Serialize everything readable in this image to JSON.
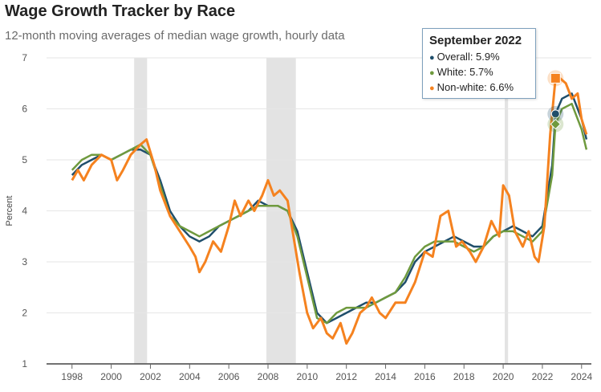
{
  "chart_data": {
    "type": "line",
    "title": "Wage Growth Tracker by Race",
    "subtitle": "12-month moving averages of median wage growth, hourly data",
    "ylabel": "Percent",
    "xlabel": "",
    "xlim": [
      1996.7,
      2024.5
    ],
    "ylim": [
      1,
      7
    ],
    "yticks": [
      1,
      2,
      3,
      4,
      5,
      6,
      7
    ],
    "xticks": [
      1998,
      2000,
      2002,
      2004,
      2006,
      2008,
      2010,
      2012,
      2014,
      2016,
      2018,
      2020,
      2022,
      2024
    ],
    "recessions": [
      [
        2001.17,
        2001.83
      ],
      [
        2007.92,
        2009.42
      ],
      [
        2020.08,
        2020.25
      ]
    ],
    "series": [
      {
        "name": "Overall",
        "color": "#1f4e6b",
        "x": [
          1998.0,
          1998.5,
          1999.0,
          1999.5,
          2000.0,
          2000.5,
          2001.0,
          2001.5,
          2002.0,
          2002.5,
          2003.0,
          2003.5,
          2004.0,
          2004.5,
          2005.0,
          2005.5,
          2006.0,
          2006.5,
          2007.0,
          2007.5,
          2008.0,
          2008.5,
          2009.0,
          2009.5,
          2010.0,
          2010.5,
          2011.0,
          2011.5,
          2012.0,
          2012.5,
          2013.0,
          2013.5,
          2014.0,
          2014.5,
          2015.0,
          2015.5,
          2016.0,
          2016.5,
          2017.0,
          2017.5,
          2018.0,
          2018.5,
          2019.0,
          2019.5,
          2020.0,
          2020.5,
          2021.0,
          2021.5,
          2022.0,
          2022.5,
          2022.67,
          2023.0,
          2023.5,
          2024.0,
          2024.25
        ],
        "values": [
          4.7,
          4.9,
          5.0,
          5.1,
          5.0,
          5.1,
          5.2,
          5.2,
          5.1,
          4.6,
          4.0,
          3.7,
          3.5,
          3.4,
          3.5,
          3.7,
          3.8,
          3.9,
          4.0,
          4.2,
          4.1,
          4.1,
          4.0,
          3.6,
          2.8,
          2.0,
          1.8,
          1.9,
          2.0,
          2.1,
          2.2,
          2.2,
          2.3,
          2.4,
          2.6,
          3.0,
          3.2,
          3.3,
          3.4,
          3.5,
          3.4,
          3.3,
          3.3,
          3.5,
          3.6,
          3.7,
          3.6,
          3.5,
          3.7,
          4.9,
          5.9,
          6.2,
          6.3,
          5.8,
          5.4
        ]
      },
      {
        "name": "White",
        "color": "#6f9a3e",
        "x": [
          1998.0,
          1998.5,
          1999.0,
          1999.5,
          2000.0,
          2000.5,
          2001.0,
          2001.5,
          2002.0,
          2002.5,
          2003.0,
          2003.5,
          2004.0,
          2004.5,
          2005.0,
          2005.5,
          2006.0,
          2006.5,
          2007.0,
          2007.5,
          2008.0,
          2008.5,
          2009.0,
          2009.5,
          2010.0,
          2010.5,
          2011.0,
          2011.5,
          2012.0,
          2012.5,
          2013.0,
          2013.5,
          2014.0,
          2014.5,
          2015.0,
          2015.5,
          2016.0,
          2016.5,
          2017.0,
          2017.5,
          2018.0,
          2018.5,
          2019.0,
          2019.5,
          2020.0,
          2020.5,
          2021.0,
          2021.5,
          2022.0,
          2022.5,
          2022.67,
          2023.0,
          2023.5,
          2024.0,
          2024.25
        ],
        "values": [
          4.8,
          5.0,
          5.1,
          5.1,
          5.0,
          5.1,
          5.2,
          5.3,
          5.1,
          4.5,
          3.9,
          3.7,
          3.6,
          3.5,
          3.6,
          3.7,
          3.8,
          3.9,
          4.0,
          4.1,
          4.1,
          4.1,
          4.0,
          3.5,
          2.7,
          1.9,
          1.8,
          2.0,
          2.1,
          2.1,
          2.1,
          2.2,
          2.3,
          2.4,
          2.7,
          3.1,
          3.3,
          3.4,
          3.4,
          3.4,
          3.3,
          3.2,
          3.3,
          3.5,
          3.6,
          3.6,
          3.5,
          3.4,
          3.6,
          4.7,
          5.7,
          6.0,
          6.1,
          5.6,
          5.2
        ]
      },
      {
        "name": "Non-white",
        "color": "#f5821f",
        "x": [
          1998.0,
          1998.3,
          1998.6,
          1999.0,
          1999.5,
          2000.0,
          2000.3,
          2000.6,
          2001.0,
          2001.5,
          2001.8,
          2002.2,
          2002.5,
          2003.0,
          2003.5,
          2004.0,
          2004.3,
          2004.5,
          2004.8,
          2005.2,
          2005.6,
          2006.0,
          2006.3,
          2006.6,
          2007.0,
          2007.3,
          2007.7,
          2008.0,
          2008.3,
          2008.6,
          2009.0,
          2009.3,
          2009.6,
          2010.0,
          2010.3,
          2010.7,
          2011.0,
          2011.3,
          2011.7,
          2012.0,
          2012.3,
          2012.7,
          2013.0,
          2013.3,
          2013.7,
          2014.0,
          2014.5,
          2015.0,
          2015.5,
          2016.0,
          2016.4,
          2016.8,
          2017.2,
          2017.6,
          2017.9,
          2018.3,
          2018.6,
          2019.0,
          2019.4,
          2019.8,
          2020.0,
          2020.3,
          2020.6,
          2021.0,
          2021.3,
          2021.6,
          2021.8,
          2022.1,
          2022.4,
          2022.67,
          2022.9,
          2023.2,
          2023.5,
          2023.8,
          2024.0,
          2024.25
        ],
        "values": [
          4.6,
          4.8,
          4.6,
          4.9,
          5.1,
          5.0,
          4.6,
          4.8,
          5.1,
          5.3,
          5.4,
          4.9,
          4.4,
          3.9,
          3.6,
          3.3,
          3.1,
          2.8,
          3.0,
          3.4,
          3.2,
          3.7,
          4.2,
          3.9,
          4.2,
          4.0,
          4.3,
          4.6,
          4.3,
          4.4,
          4.2,
          3.5,
          2.8,
          2.0,
          1.7,
          1.9,
          1.6,
          1.5,
          1.8,
          1.4,
          1.6,
          2.0,
          2.1,
          2.3,
          2.0,
          1.9,
          2.2,
          2.2,
          2.6,
          3.2,
          3.1,
          3.9,
          4.0,
          3.3,
          3.4,
          3.2,
          3.0,
          3.3,
          3.8,
          3.5,
          4.5,
          4.3,
          3.6,
          3.3,
          3.6,
          3.1,
          3.0,
          3.7,
          5.5,
          6.6,
          6.6,
          6.5,
          6.2,
          6.3,
          5.8,
          5.5
        ]
      }
    ],
    "highlight": {
      "x": 2022.67,
      "date": "September 2022",
      "points": [
        {
          "name": "Overall",
          "label": "Overall: 5.9%",
          "value": 5.9,
          "color": "#1f4e6b",
          "marker": "circle"
        },
        {
          "name": "White",
          "label": "White: 5.7%",
          "value": 5.7,
          "color": "#6f9a3e",
          "marker": "diamond"
        },
        {
          "name": "Non-white",
          "label": "Non-white: 6.6%",
          "value": 6.6,
          "color": "#f5821f",
          "marker": "square"
        }
      ]
    }
  }
}
